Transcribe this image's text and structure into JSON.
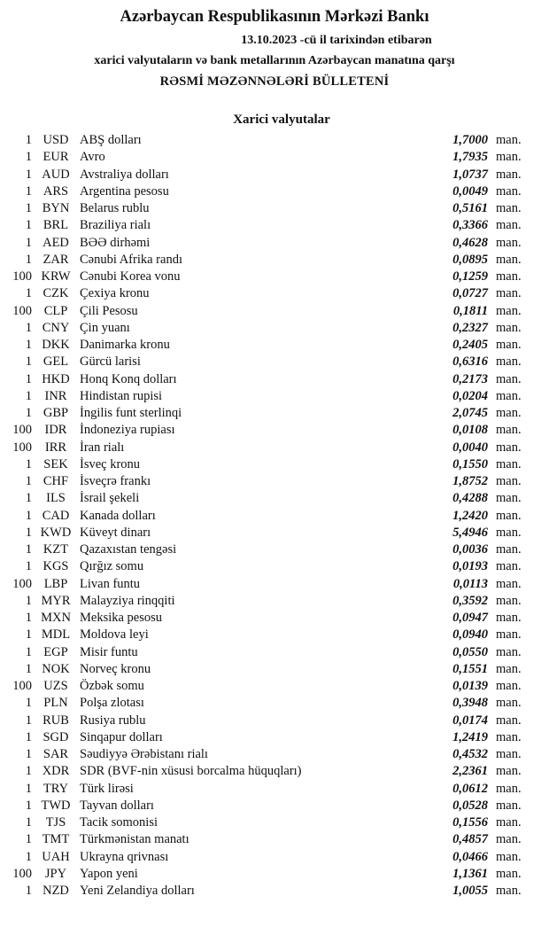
{
  "header": {
    "title": "Azərbaycan Respublikasının Mərkəzi Bankı",
    "date_line": "13.10.2023 -cü il tarixindən etibarən",
    "subtitle": "xarici valyutaların və bank metallarının Azərbaycan manatına qarşı",
    "bulletin": "RƏSMİ MƏZƏNNƏLƏRİ BÜLLETENİ"
  },
  "section_title": "Xarici valyutalar",
  "rates": [
    {
      "count": "1",
      "code": "USD",
      "name": "ABŞ dolları",
      "value": "1,7000",
      "unit": "man."
    },
    {
      "count": "1",
      "code": "EUR",
      "name": "Avro",
      "value": "1,7935",
      "unit": "man."
    },
    {
      "count": "1",
      "code": "AUD",
      "name": "Avstraliya dolları",
      "value": "1,0737",
      "unit": "man."
    },
    {
      "count": "1",
      "code": "ARS",
      "name": "Argentina pesosu",
      "value": "0,0049",
      "unit": "man."
    },
    {
      "count": "1",
      "code": "BYN",
      "name": "Belarus rublu",
      "value": "0,5161",
      "unit": "man."
    },
    {
      "count": "1",
      "code": "BRL",
      "name": "Braziliya rialı",
      "value": "0,3366",
      "unit": "man."
    },
    {
      "count": "1",
      "code": "AED",
      "name": "BƏƏ dirhəmi",
      "value": "0,4628",
      "unit": "man."
    },
    {
      "count": "1",
      "code": "ZAR",
      "name": "Cənubi Afrika randı",
      "value": "0,0895",
      "unit": "man."
    },
    {
      "count": "100",
      "code": "KRW",
      "name": "Cənubi Korea vonu",
      "value": "0,1259",
      "unit": "man."
    },
    {
      "count": "1",
      "code": "CZK",
      "name": "Çexiya kronu",
      "value": "0,0727",
      "unit": "man."
    },
    {
      "count": "100",
      "code": "CLP",
      "name": "Çili Pesosu",
      "value": "0,1811",
      "unit": "man."
    },
    {
      "count": "1",
      "code": "CNY",
      "name": "Çin yuanı",
      "value": "0,2327",
      "unit": "man."
    },
    {
      "count": "1",
      "code": "DKK",
      "name": "Danimarka kronu",
      "value": "0,2405",
      "unit": "man."
    },
    {
      "count": "1",
      "code": "GEL",
      "name": "Gürcü larisi",
      "value": "0,6316",
      "unit": "man."
    },
    {
      "count": "1",
      "code": "HKD",
      "name": "Honq Konq dolları",
      "value": "0,2173",
      "unit": "man."
    },
    {
      "count": "1",
      "code": "INR",
      "name": "Hindistan rupisi",
      "value": "0,0204",
      "unit": "man."
    },
    {
      "count": "1",
      "code": "GBP",
      "name": "İngilis funt sterlinqi",
      "value": "2,0745",
      "unit": "man."
    },
    {
      "count": "100",
      "code": "IDR",
      "name": "İndoneziya rupiası",
      "value": "0,0108",
      "unit": "man."
    },
    {
      "count": "100",
      "code": "IRR",
      "name": "İran rialı",
      "value": "0,0040",
      "unit": "man."
    },
    {
      "count": "1",
      "code": "SEK",
      "name": "İsveç kronu",
      "value": "0,1550",
      "unit": "man."
    },
    {
      "count": "1",
      "code": "CHF",
      "name": "İsveçrə frankı",
      "value": "1,8752",
      "unit": "man."
    },
    {
      "count": "1",
      "code": "ILS",
      "name": "İsrail şekeli",
      "value": "0,4288",
      "unit": "man."
    },
    {
      "count": "1",
      "code": "CAD",
      "name": "Kanada dolları",
      "value": "1,2420",
      "unit": "man."
    },
    {
      "count": "1",
      "code": "KWD",
      "name": "Küveyt dinarı",
      "value": "5,4946",
      "unit": "man."
    },
    {
      "count": "1",
      "code": "KZT",
      "name": "Qazaxıstan tengəsi",
      "value": "0,0036",
      "unit": "man."
    },
    {
      "count": "1",
      "code": "KGS",
      "name": "Qırğız somu",
      "value": "0,0193",
      "unit": "man."
    },
    {
      "count": "100",
      "code": "LBP",
      "name": "Livan funtu",
      "value": "0,0113",
      "unit": "man."
    },
    {
      "count": "1",
      "code": "MYR",
      "name": "Malayziya rinqqiti",
      "value": "0,3592",
      "unit": "man."
    },
    {
      "count": "1",
      "code": "MXN",
      "name": "Meksika pesosu",
      "value": "0,0947",
      "unit": "man."
    },
    {
      "count": "1",
      "code": "MDL",
      "name": "Moldova leyi",
      "value": "0,0940",
      "unit": "man."
    },
    {
      "count": "1",
      "code": "EGP",
      "name": "Misir funtu",
      "value": "0,0550",
      "unit": "man."
    },
    {
      "count": "1",
      "code": "NOK",
      "name": "Norveç kronu",
      "value": "0,1551",
      "unit": "man."
    },
    {
      "count": "100",
      "code": "UZS",
      "name": "Özbək somu",
      "value": "0,0139",
      "unit": "man."
    },
    {
      "count": "1",
      "code": "PLN",
      "name": "Polşa zlotası",
      "value": "0,3948",
      "unit": "man."
    },
    {
      "count": "1",
      "code": "RUB",
      "name": "Rusiya rublu",
      "value": "0,0174",
      "unit": "man."
    },
    {
      "count": "1",
      "code": "SGD",
      "name": "Sinqapur dolları",
      "value": "1,2419",
      "unit": "man."
    },
    {
      "count": "1",
      "code": "SAR",
      "name": "Səudiyyə Ərəbistanı rialı",
      "value": "0,4532",
      "unit": "man."
    },
    {
      "count": "1",
      "code": "XDR",
      "name": "SDR (BVF-nin xüsusi borcalma hüquqları)",
      "value": "2,2361",
      "unit": "man."
    },
    {
      "count": "1",
      "code": "TRY",
      "name": "Türk lirəsi",
      "value": "0,0612",
      "unit": "man."
    },
    {
      "count": "1",
      "code": "TWD",
      "name": "Tayvan dolları",
      "value": "0,0528",
      "unit": "man."
    },
    {
      "count": "1",
      "code": "TJS",
      "name": "Tacik somonisi",
      "value": "0,1556",
      "unit": "man."
    },
    {
      "count": "1",
      "code": "TMT",
      "name": "Türkmənistan manatı",
      "value": "0,4857",
      "unit": "man."
    },
    {
      "count": "1",
      "code": "UAH",
      "name": "Ukrayna qrivnası",
      "value": "0,0466",
      "unit": "man."
    },
    {
      "count": "100",
      "code": "JPY",
      "name": "Yapon yeni",
      "value": "1,1361",
      "unit": "man."
    },
    {
      "count": "1",
      "code": "NZD",
      "name": "Yeni Zelandiya dolları",
      "value": "1,0055",
      "unit": "man."
    }
  ]
}
